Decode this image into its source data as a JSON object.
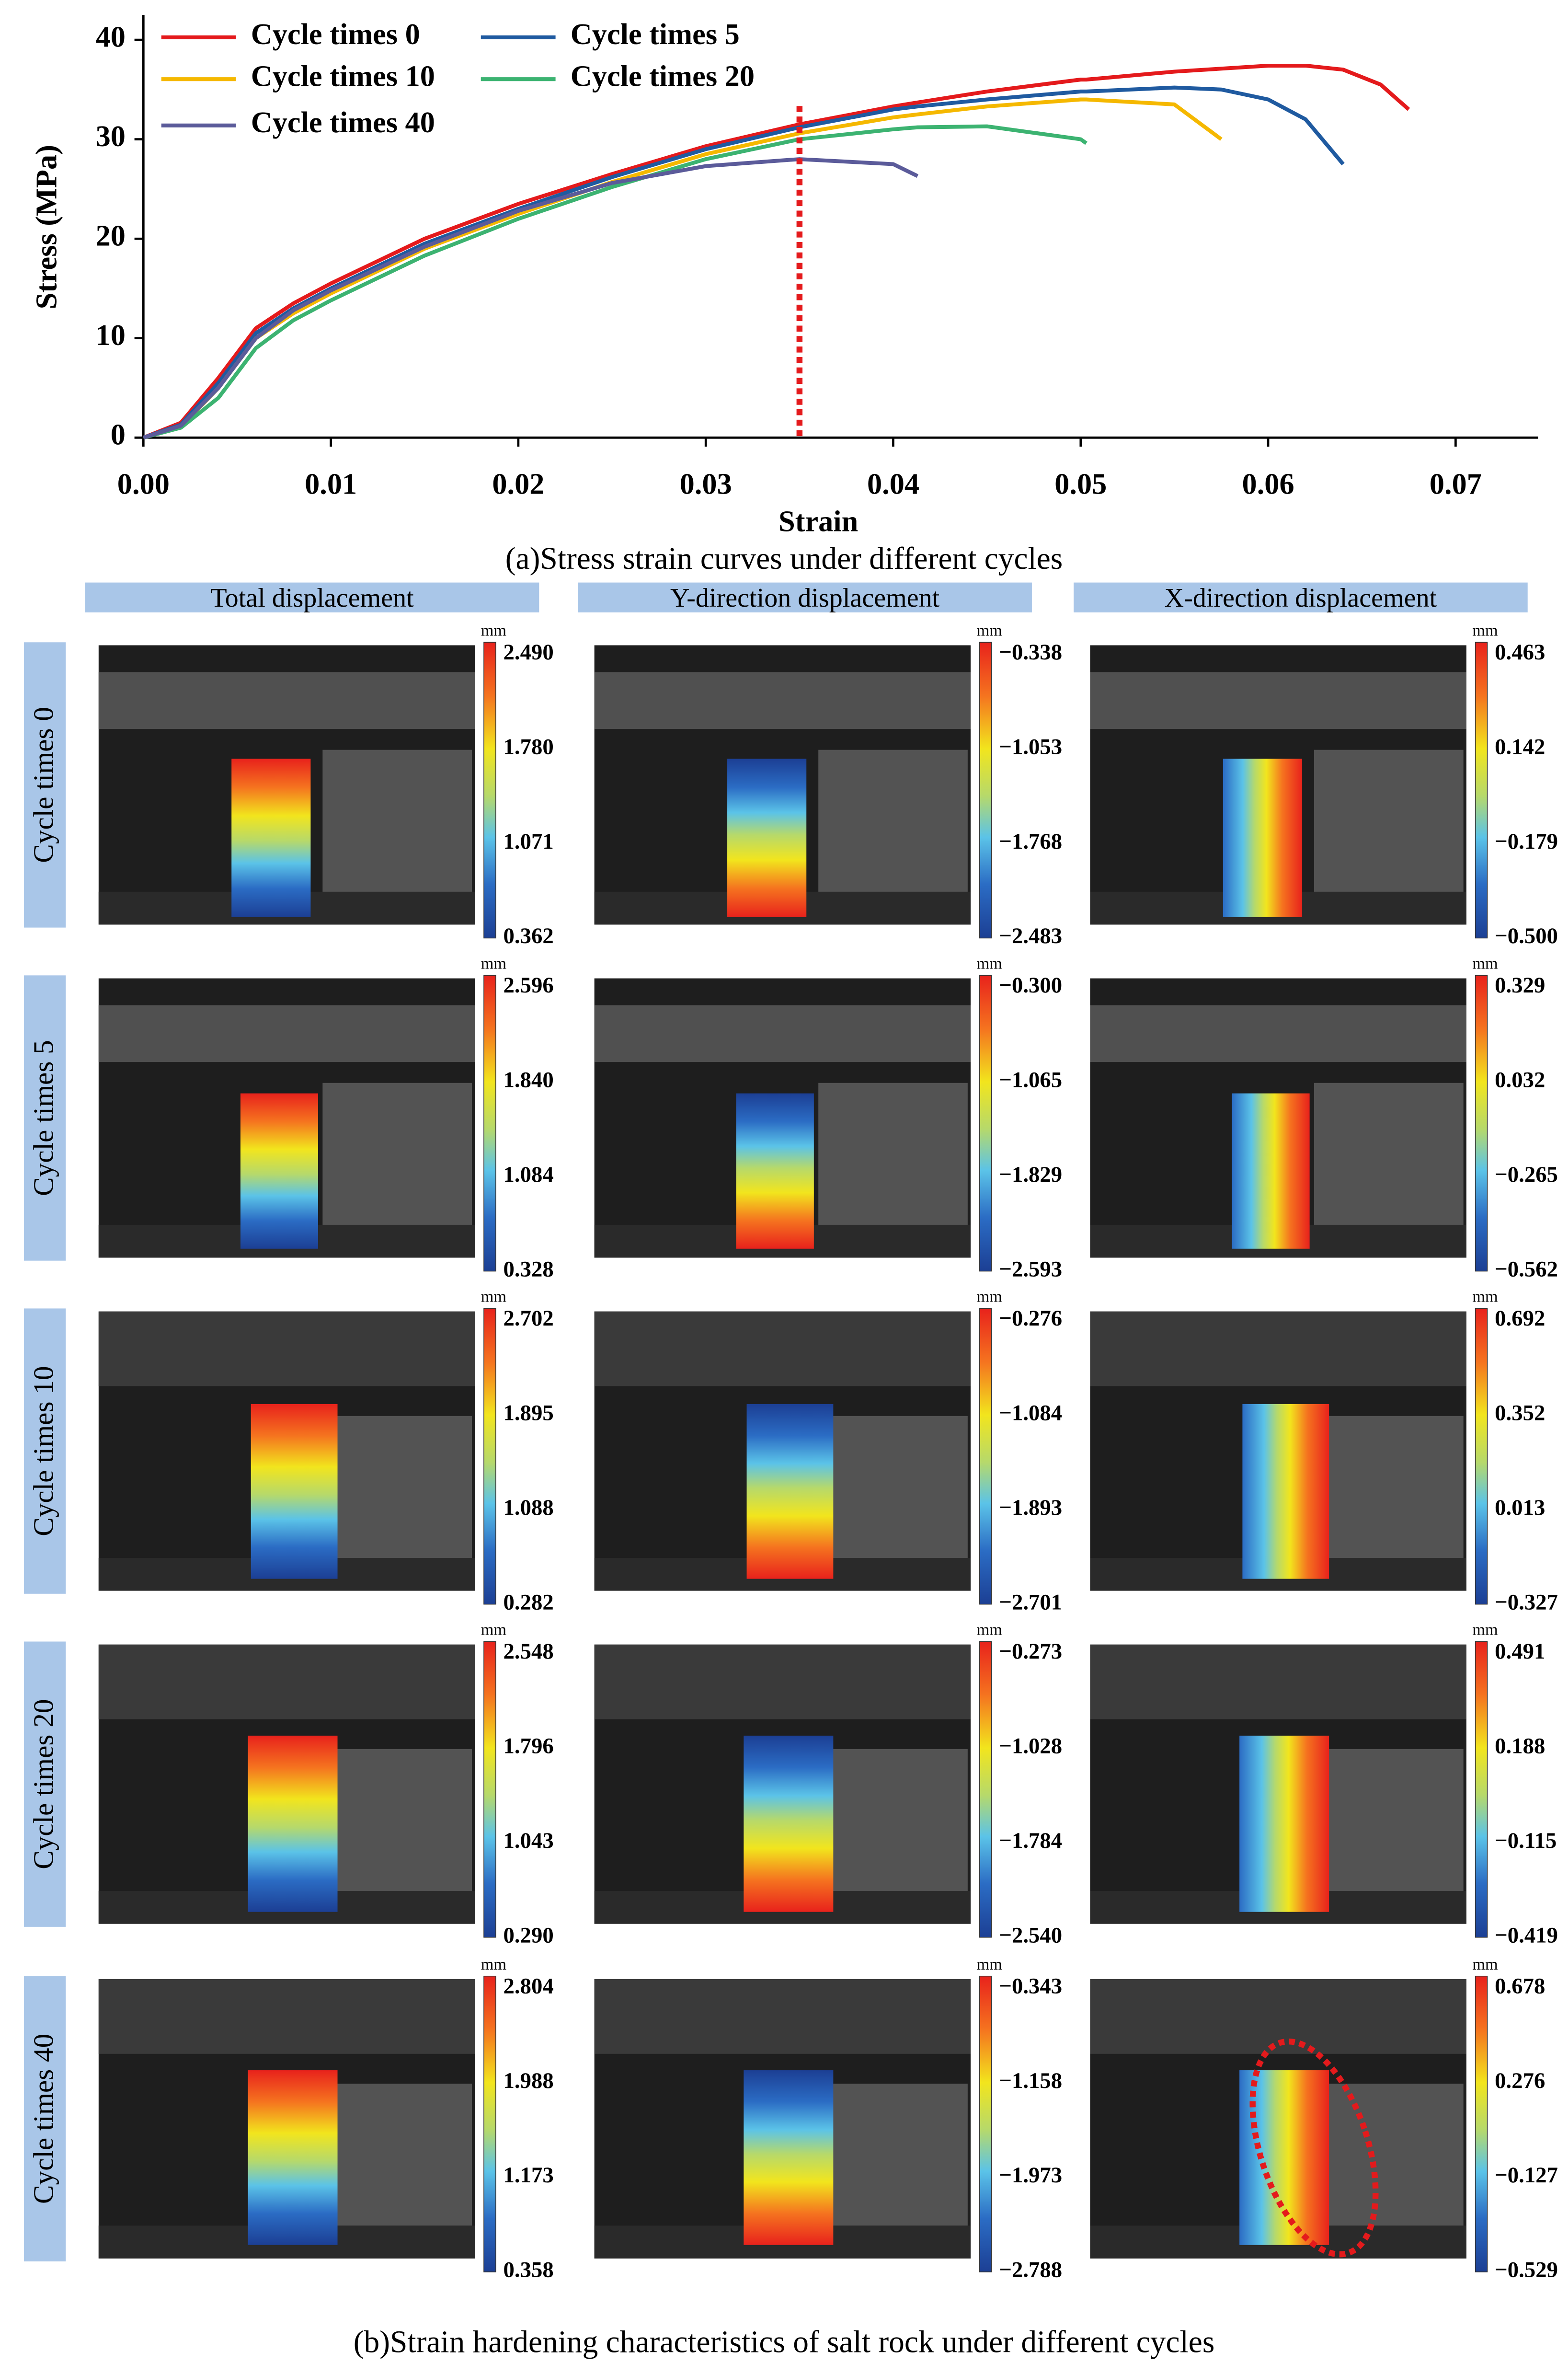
{
  "chart_data": {
    "type": "line",
    "x_label": "Strain",
    "y_label": "Stress (MPa)",
    "x": [
      0,
      0.002,
      0.004,
      0.006,
      0.008,
      0.01,
      0.015,
      0.02,
      0.025,
      0.03,
      0.035,
      0.04,
      0.0413,
      0.045,
      0.05,
      0.0503,
      0.055,
      0.0575,
      0.06,
      0.062,
      0.064,
      0.066,
      0.0675
    ],
    "series": [
      {
        "name": "Cycle times 0",
        "color": "#e41a1c",
        "values": [
          0,
          1.5,
          6,
          11,
          13.5,
          15.5,
          20,
          23.5,
          26.5,
          29.3,
          31.5,
          33.3,
          33.7,
          34.8,
          36,
          36,
          36.8,
          37.1,
          37.4,
          37.4,
          37,
          35.5,
          33
        ]
      },
      {
        "name": "Cycle times 5",
        "color": "#1f5aa0",
        "values": [
          0,
          1.3,
          5.5,
          10.5,
          13,
          15,
          19.5,
          23,
          26.2,
          29,
          31.2,
          33,
          33.3,
          34,
          34.8,
          34.8,
          35.2,
          35,
          34,
          32,
          27.5,
          null,
          null
        ]
      },
      {
        "name": "Cycle times 10",
        "color": "#f5b800",
        "values": [
          0,
          1.1,
          5,
          10,
          12.5,
          14.5,
          19,
          22.5,
          25.7,
          28.5,
          30.6,
          32.2,
          32.5,
          33.3,
          34,
          34,
          33.5,
          30,
          null,
          null,
          null,
          null,
          null
        ]
      },
      {
        "name": "Cycle times 20",
        "color": "#3cb371",
        "values": [
          0,
          1,
          4,
          9,
          11.8,
          13.8,
          18.3,
          22,
          25.2,
          28,
          30,
          31,
          31.2,
          31.3,
          30,
          29.6,
          null,
          null,
          null,
          null,
          null,
          null,
          null
        ]
      },
      {
        "name": "Cycle times 40",
        "color": "#5b5b9a",
        "values": [
          0,
          1.2,
          5,
          10,
          12.8,
          14.8,
          19.2,
          22.8,
          25.6,
          27.3,
          28,
          27.5,
          26.3,
          null,
          null,
          null,
          null,
          null,
          null,
          null,
          null,
          null,
          null
        ]
      }
    ],
    "xlim": [
      0,
      0.0744
    ],
    "ylim": [
      0,
      42.5
    ],
    "xticks": [
      {
        "value": 0,
        "label": "0.00"
      },
      {
        "value": 0.01,
        "label": "0.01"
      },
      {
        "value": 0.02,
        "label": "0.02"
      },
      {
        "value": 0.03,
        "label": "0.03"
      },
      {
        "value": 0.04,
        "label": "0.04"
      },
      {
        "value": 0.05,
        "label": "0.05"
      },
      {
        "value": 0.06,
        "label": "0.06"
      },
      {
        "value": 0.07,
        "label": "0.07"
      }
    ],
    "yticks": [
      0,
      10,
      20,
      30,
      40
    ],
    "vline": {
      "value": 0.035,
      "color": "#e41a1c"
    },
    "legend": "upper left"
  },
  "figure": {
    "caption_a": "(a)Stress strain curves under different cycles",
    "caption_b": "(b)Strain hardening characteristics of salt rock under different cycles",
    "columns": [
      "Total displacement",
      "Y-direction displacement",
      "X-direction displacement"
    ],
    "rows": [
      {
        "label": "Cycle times 0",
        "cells": [
          {
            "unit": "mm",
            "ticks": [
              "2.490",
              "1.780",
              "1.071",
              "0.362"
            ]
          },
          {
            "unit": "mm",
            "ticks": [
              "−0.338",
              "−1.053",
              "−1.768",
              "−2.483"
            ]
          },
          {
            "unit": "mm",
            "ticks": [
              "0.463",
              "0.142",
              "−0.179",
              "−0.500"
            ]
          }
        ]
      },
      {
        "label": "Cycle times 5",
        "cells": [
          {
            "unit": "mm",
            "ticks": [
              "2.596",
              "1.840",
              "1.084",
              "0.328"
            ]
          },
          {
            "unit": "mm",
            "ticks": [
              "−0.300",
              "−1.065",
              "−1.829",
              "−2.593"
            ]
          },
          {
            "unit": "mm",
            "ticks": [
              "0.329",
              "0.032",
              "−0.265",
              "−0.562"
            ]
          }
        ]
      },
      {
        "label": "Cycle times 10",
        "cells": [
          {
            "unit": "mm",
            "ticks": [
              "2.702",
              "1.895",
              "1.088",
              "0.282"
            ]
          },
          {
            "unit": "mm",
            "ticks": [
              "−0.276",
              "−1.084",
              "−1.893",
              "−2.701"
            ]
          },
          {
            "unit": "mm",
            "ticks": [
              "0.692",
              "0.352",
              "0.013",
              "−0.327"
            ]
          }
        ]
      },
      {
        "label": "Cycle times 20",
        "cells": [
          {
            "unit": "mm",
            "ticks": [
              "2.548",
              "1.796",
              "1.043",
              "0.290"
            ]
          },
          {
            "unit": "mm",
            "ticks": [
              "−0.273",
              "−1.028",
              "−1.784",
              "−2.540"
            ]
          },
          {
            "unit": "mm",
            "ticks": [
              "0.491",
              "0.188",
              "−0.115",
              "−0.419"
            ]
          }
        ]
      },
      {
        "label": "Cycle times 40",
        "cells": [
          {
            "unit": "mm",
            "ticks": [
              "2.804",
              "1.988",
              "1.173",
              "0.358"
            ]
          },
          {
            "unit": "mm",
            "ticks": [
              "−0.343",
              "−1.158",
              "−1.973",
              "−2.788"
            ]
          },
          {
            "unit": "mm",
            "ticks": [
              "0.678",
              "0.276",
              "−0.127",
              "−0.529"
            ]
          }
        ]
      }
    ]
  }
}
